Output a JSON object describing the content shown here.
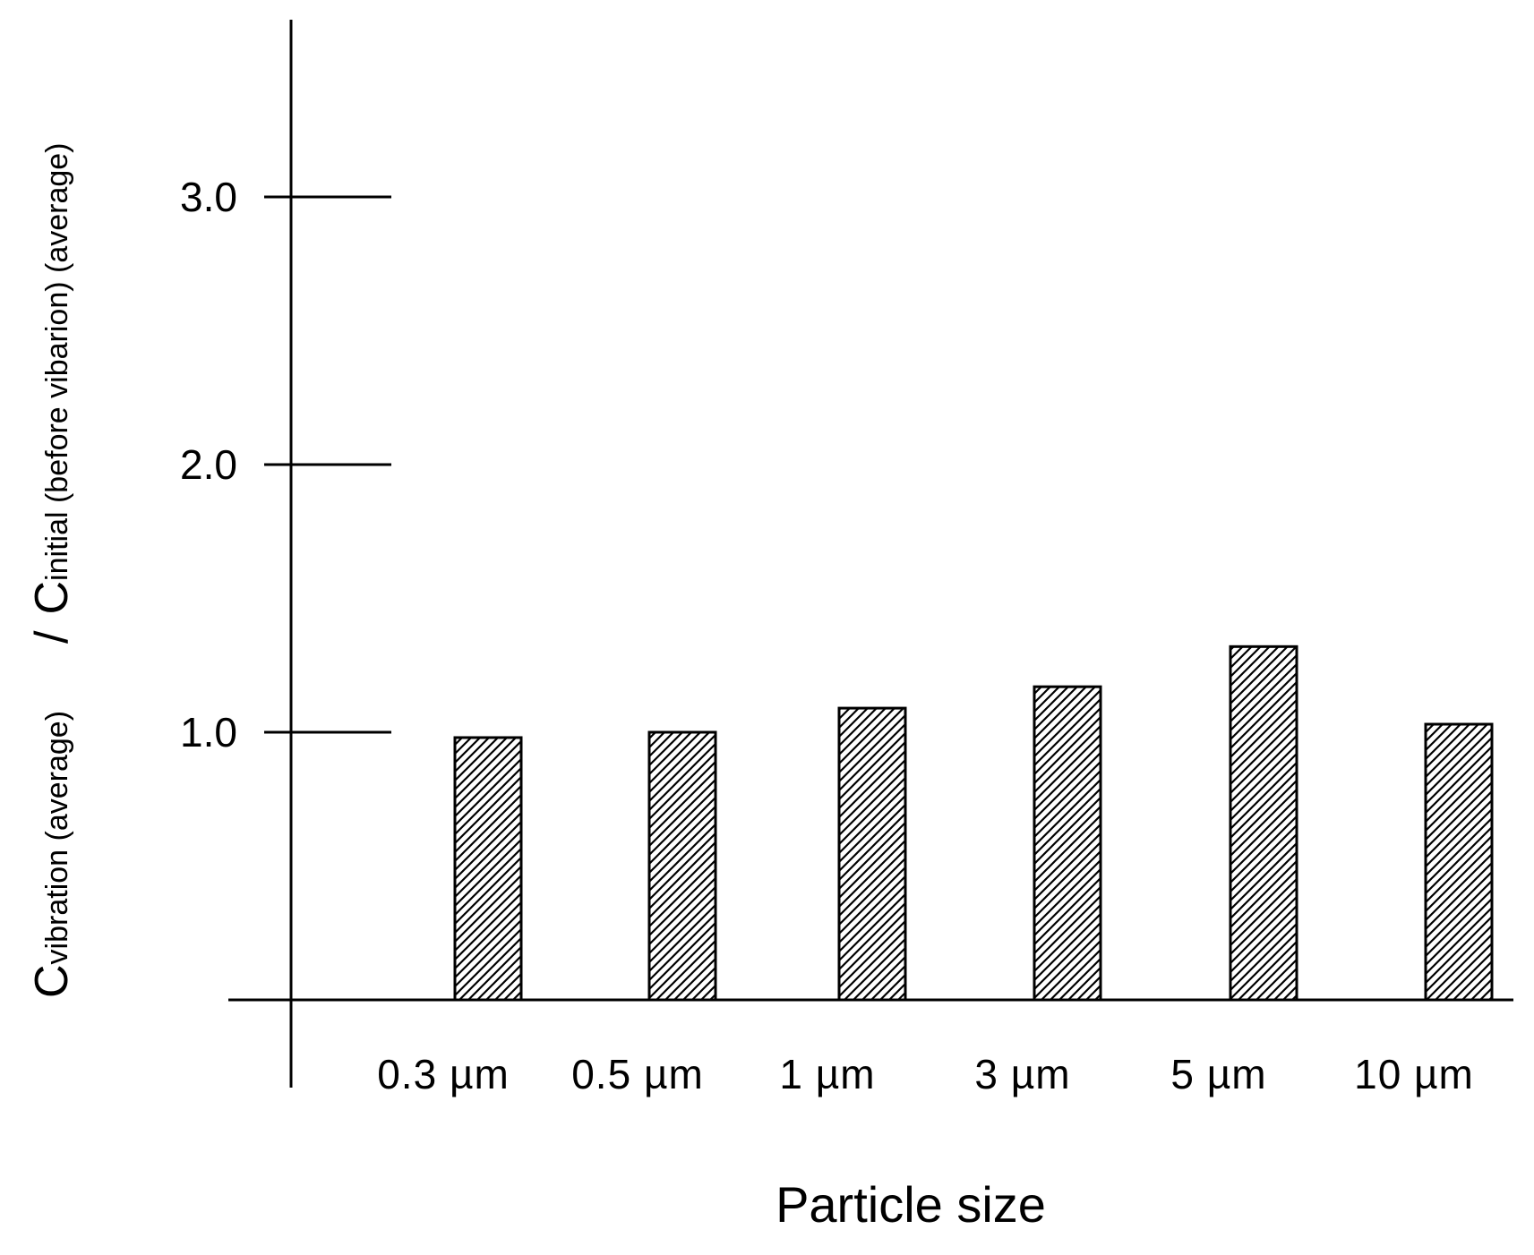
{
  "chart_data": {
    "type": "bar",
    "categories": [
      "0.3 µm",
      "0.5 µm",
      "1 µm",
      "3 µm",
      "5 µm",
      "10 µm"
    ],
    "values": [
      0.98,
      1.0,
      1.09,
      1.17,
      1.32,
      1.03
    ],
    "xlabel": "Particle size",
    "ylabel": {
      "numerator_symbol": "C",
      "numerator_subscript": "vibration (average)",
      "divider": "/",
      "denominator_symbol": "C",
      "denominator_subscript": "initial (before vibarion) (average)"
    },
    "ylim": [
      0,
      3.7
    ],
    "yticks": [
      1.0,
      2.0,
      3.0
    ],
    "ytick_labels": [
      "1.0",
      "2.0",
      "3.0"
    ],
    "grid": false,
    "bar_fill": "diagonal-hatch",
    "colors": {
      "bar_edge": "#000000",
      "hatch": "#000000",
      "background": "#ffffff"
    }
  }
}
